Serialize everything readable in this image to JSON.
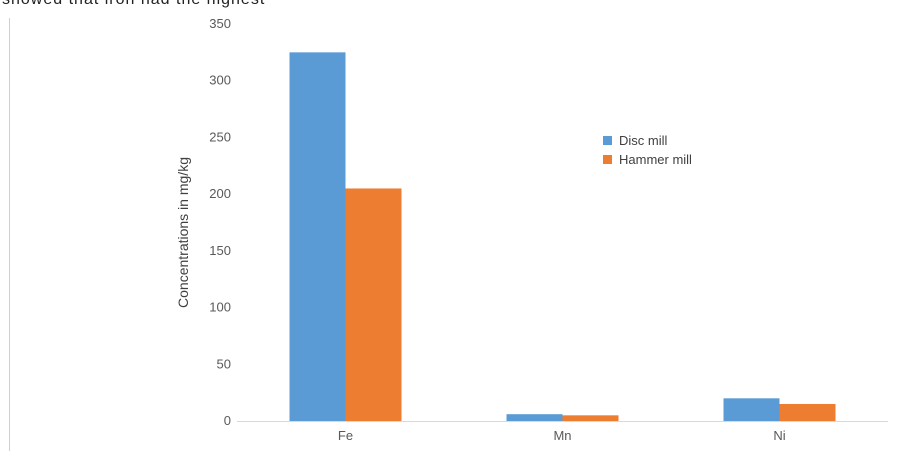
{
  "page": {
    "top_text": "showed    that    iron    had    the    highest"
  },
  "chart_data": {
    "type": "bar",
    "title": "",
    "xlabel": "",
    "ylabel": "Concentrations in mg/kg",
    "ylim": [
      0,
      350
    ],
    "yticks": [
      0,
      50,
      100,
      150,
      200,
      250,
      300,
      350
    ],
    "grid": false,
    "legend": "right",
    "categories": [
      "Fe",
      "Mn",
      "Ni"
    ],
    "series": [
      {
        "name": "Disc mill",
        "color": "#5b9bd5",
        "values": [
          325,
          6,
          20
        ]
      },
      {
        "name": "Hammer mill",
        "color": "#ed7d31",
        "values": [
          205,
          5,
          15
        ]
      }
    ]
  }
}
